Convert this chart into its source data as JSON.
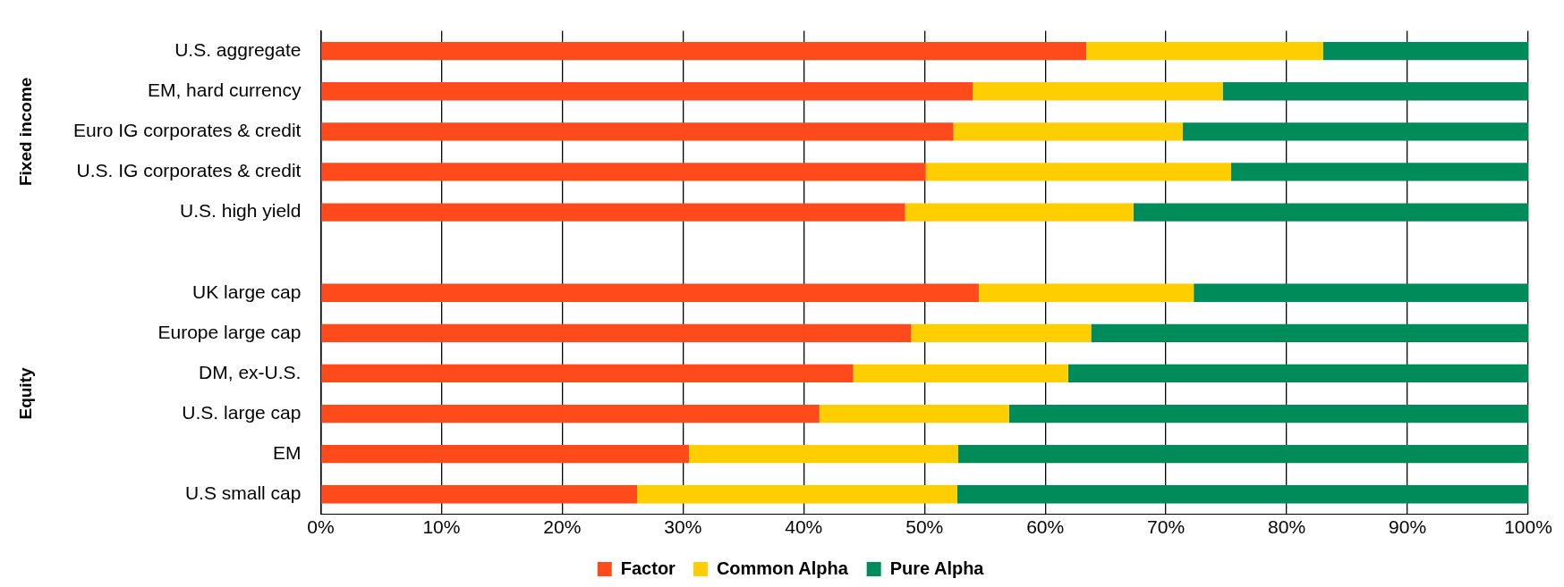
{
  "chart_data": {
    "type": "bar",
    "orientation": "horizontal",
    "stacked": true,
    "categories": [
      "U.S. aggregate",
      "EM, hard currency",
      "Euro IG corporates & credit",
      "U.S. IG corporates & credit",
      "U.S. high yield",
      null,
      "UK large cap",
      "Europe large cap",
      "DM, ex-U.S.",
      "U.S. large cap",
      "EM",
      "U.S small cap"
    ],
    "series": [
      {
        "name": "Factor",
        "color": "#ff4b1c",
        "values": [
          63.4,
          54.0,
          52.4,
          50.1,
          48.4,
          null,
          54.5,
          48.9,
          44.1,
          41.3,
          30.5,
          26.2
        ]
      },
      {
        "name": "Common Alpha",
        "color": "#ffce00",
        "values": [
          19.6,
          20.7,
          19.0,
          25.3,
          18.9,
          null,
          17.8,
          14.9,
          17.8,
          15.7,
          22.3,
          26.5
        ]
      },
      {
        "name": "Pure Alpha",
        "color": "#008b5a",
        "values": [
          17.0,
          25.3,
          28.6,
          24.6,
          32.7,
          null,
          27.7,
          36.2,
          38.1,
          43.0,
          47.2,
          47.3
        ]
      }
    ],
    "xlim": [
      0,
      100
    ],
    "xticks": [
      {
        "value": 0,
        "label": "0%"
      },
      {
        "value": 10,
        "label": "10%"
      },
      {
        "value": 20,
        "label": "20%"
      },
      {
        "value": 30,
        "label": "30%"
      },
      {
        "value": 40,
        "label": "40%"
      },
      {
        "value": 50,
        "label": "50%"
      },
      {
        "value": 60,
        "label": "60%"
      },
      {
        "value": 70,
        "label": "70%"
      },
      {
        "value": 80,
        "label": "80%"
      },
      {
        "value": 90,
        "label": "90%"
      },
      {
        "value": 100,
        "label": "100%"
      }
    ],
    "grid": "x",
    "legend": "bottom",
    "annotations": [
      "Fixed income",
      "Equity"
    ]
  }
}
